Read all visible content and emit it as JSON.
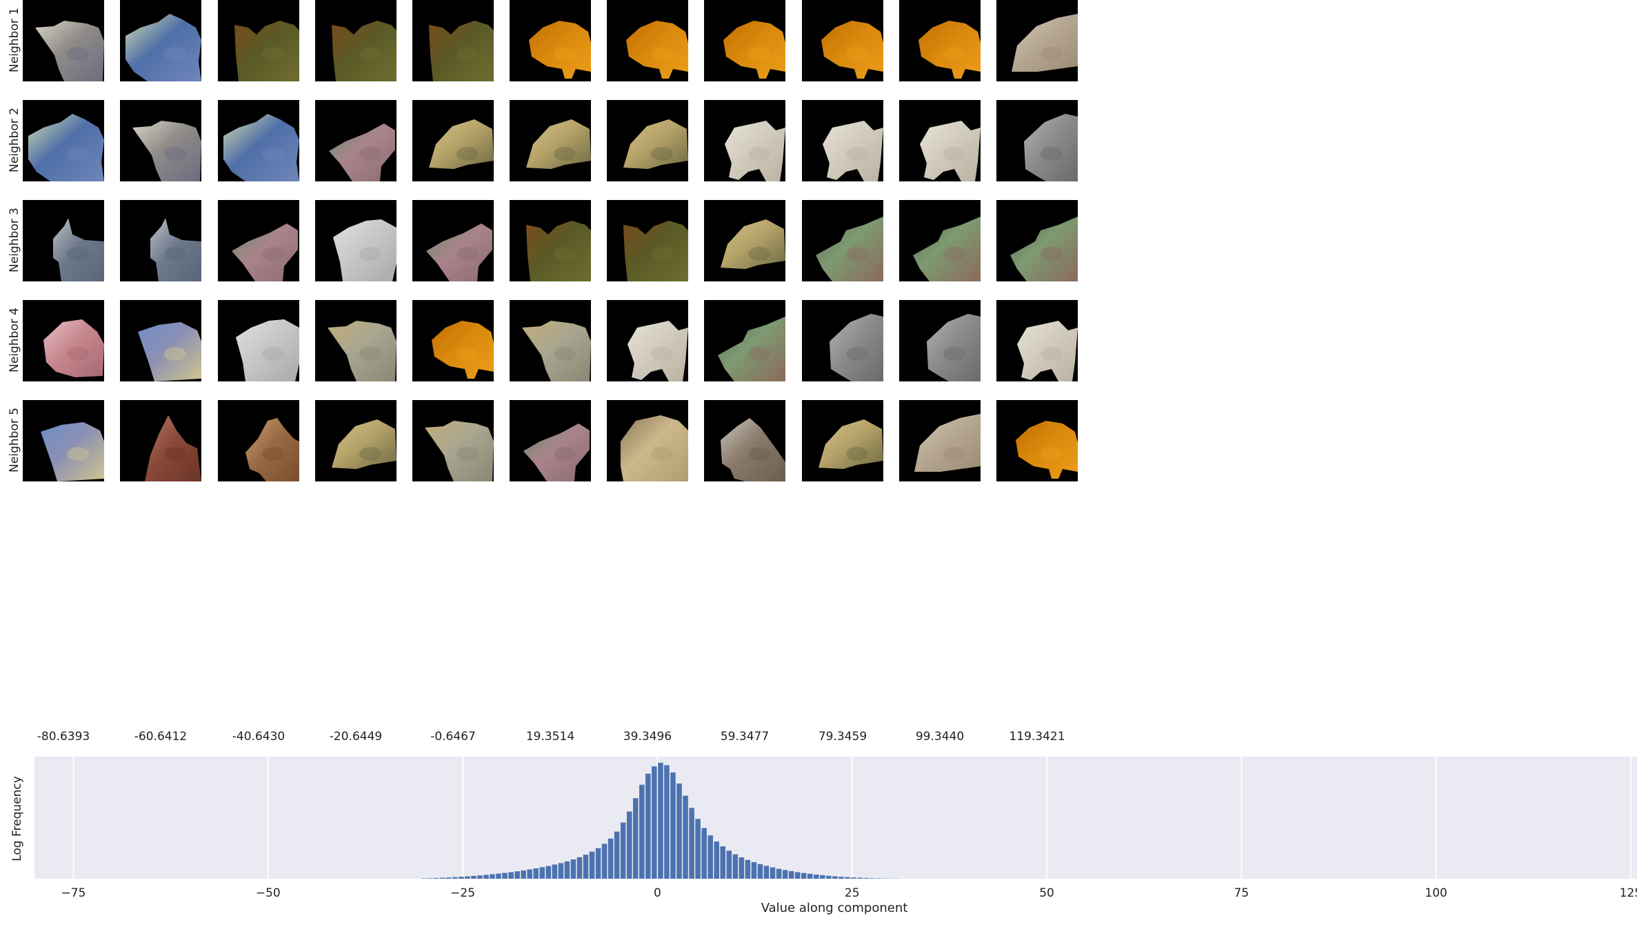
{
  "rows": [
    {
      "label": "Neighbor 1",
      "patches": [
        {
          "colors": [
            "#8f8b88",
            "#6b6d80",
            "#d9d4c6"
          ],
          "shape": "a"
        },
        {
          "colors": [
            "#4f6fa8",
            "#6f86b8",
            "#d6dfb0"
          ],
          "shape": "b"
        },
        {
          "colors": [
            "#5a5a26",
            "#6f6d30",
            "#7a4a1c"
          ],
          "shape": "c"
        },
        {
          "colors": [
            "#5a5a26",
            "#6f6d30",
            "#7a4a1c"
          ],
          "shape": "c"
        },
        {
          "colors": [
            "#5a5a26",
            "#6f6d30",
            "#7a4a1c"
          ],
          "shape": "c"
        },
        {
          "colors": [
            "#d9890c",
            "#ee9d1a",
            "#c46f04"
          ],
          "shape": "d"
        },
        {
          "colors": [
            "#d9890c",
            "#ee9d1a",
            "#c46f04"
          ],
          "shape": "d"
        },
        {
          "colors": [
            "#d9890c",
            "#ee9d1a",
            "#c46f04"
          ],
          "shape": "d"
        },
        {
          "colors": [
            "#d9890c",
            "#ee9d1a",
            "#c46f04"
          ],
          "shape": "d"
        },
        {
          "colors": [
            "#d9890c",
            "#ee9d1a",
            "#c46f04"
          ],
          "shape": "d"
        },
        {
          "colors": [
            "#b7a893",
            "#9b8b75",
            "#d8ccb6"
          ],
          "shape": "e"
        }
      ]
    },
    {
      "label": "Neighbor 2",
      "patches": [
        {
          "colors": [
            "#4f6fa8",
            "#6f86b8",
            "#d6dfb0"
          ],
          "shape": "b"
        },
        {
          "colors": [
            "#8f8b88",
            "#6b6d80",
            "#d9d4c6"
          ],
          "shape": "a"
        },
        {
          "colors": [
            "#4f6fa8",
            "#6f86b8",
            "#d6dfb0"
          ],
          "shape": "b"
        },
        {
          "colors": [
            "#a9848b",
            "#8c6b70",
            "#6a8a6a"
          ],
          "shape": "f"
        },
        {
          "colors": [
            "#b7a46a",
            "#6e6a44",
            "#d1bf84"
          ],
          "shape": "g"
        },
        {
          "colors": [
            "#b7a46a",
            "#6e6a44",
            "#d1bf84"
          ],
          "shape": "g"
        },
        {
          "colors": [
            "#b7a46a",
            "#6e6a44",
            "#d1bf84"
          ],
          "shape": "g"
        },
        {
          "colors": [
            "#d2ccbe",
            "#bab1a0",
            "#e6e2d6"
          ],
          "shape": "h"
        },
        {
          "colors": [
            "#d2ccbe",
            "#bab1a0",
            "#e6e2d6"
          ],
          "shape": "h"
        },
        {
          "colors": [
            "#d2ccbe",
            "#bab1a0",
            "#e6e2d6"
          ],
          "shape": "h"
        },
        {
          "colors": [
            "#8c8c8c",
            "#6a6a6a",
            "#b4b4b4"
          ],
          "shape": "i"
        }
      ]
    },
    {
      "label": "Neighbor 3",
      "patches": [
        {
          "colors": [
            "#6e7a8c",
            "#5a6478",
            "#c0c0c4"
          ],
          "shape": "j"
        },
        {
          "colors": [
            "#6e7a8c",
            "#5a6478",
            "#c0c0c4"
          ],
          "shape": "j"
        },
        {
          "colors": [
            "#a9848b",
            "#8c6b70",
            "#6a8a6a"
          ],
          "shape": "f"
        },
        {
          "colors": [
            "#c8c8c8",
            "#a9a9a9",
            "#e0e0e0"
          ],
          "shape": "k"
        },
        {
          "colors": [
            "#a9848b",
            "#8c6b70",
            "#6a8a6a"
          ],
          "shape": "f"
        },
        {
          "colors": [
            "#5a5a26",
            "#6f6d30",
            "#7a4a1c"
          ],
          "shape": "c"
        },
        {
          "colors": [
            "#5a5a26",
            "#6f6d30",
            "#7a4a1c"
          ],
          "shape": "c"
        },
        {
          "colors": [
            "#b7a46a",
            "#6e6a44",
            "#d1bf84"
          ],
          "shape": "g"
        },
        {
          "colors": [
            "#7d9a72",
            "#8a6a5a",
            "#5b6b58"
          ],
          "shape": "l"
        },
        {
          "colors": [
            "#7d9a72",
            "#8a6a5a",
            "#5b6b58"
          ],
          "shape": "l"
        },
        {
          "colors": [
            "#7d9a72",
            "#8a6a5a",
            "#5b6b58"
          ],
          "shape": "l"
        }
      ]
    },
    {
      "label": "Neighbor 4",
      "patches": [
        {
          "colors": [
            "#c7878f",
            "#a66a72",
            "#e7c1c4"
          ],
          "shape": "m"
        },
        {
          "colors": [
            "#8c90b4",
            "#d0c68e",
            "#6d8ec8"
          ],
          "shape": "n"
        },
        {
          "colors": [
            "#c8c8c8",
            "#a9a9a9",
            "#e0e0e0"
          ],
          "shape": "k"
        },
        {
          "colors": [
            "#a9a690",
            "#8a8774",
            "#c2ad7a"
          ],
          "shape": "o"
        },
        {
          "colors": [
            "#d9890c",
            "#ee9d1a",
            "#c46f04"
          ],
          "shape": "d"
        },
        {
          "colors": [
            "#a9a690",
            "#8a8774",
            "#c2ad7a"
          ],
          "shape": "o"
        },
        {
          "colors": [
            "#d2ccbe",
            "#bab1a0",
            "#e6e2d6"
          ],
          "shape": "h"
        },
        {
          "colors": [
            "#7d9a72",
            "#8a6a5a",
            "#5b6b58"
          ],
          "shape": "l"
        },
        {
          "colors": [
            "#8c8c8c",
            "#6a6a6a",
            "#b4b4b4"
          ],
          "shape": "i"
        },
        {
          "colors": [
            "#8c8c8c",
            "#6a6a6a",
            "#b4b4b4"
          ],
          "shape": "i"
        },
        {
          "colors": [
            "#d2ccbe",
            "#bab1a0",
            "#e6e2d6"
          ],
          "shape": "h"
        }
      ]
    },
    {
      "label": "Neighbor 5",
      "patches": [
        {
          "colors": [
            "#8c90b4",
            "#d0c68e",
            "#6d8ec8"
          ],
          "shape": "n"
        },
        {
          "colors": [
            "#8a4a3a",
            "#6a3426",
            "#b57a62"
          ],
          "shape": "p"
        },
        {
          "colors": [
            "#9a6a44",
            "#7a4e2e",
            "#c8a070"
          ],
          "shape": "q"
        },
        {
          "colors": [
            "#b7a46a",
            "#6e6a44",
            "#d1bf84"
          ],
          "shape": "g"
        },
        {
          "colors": [
            "#a9a690",
            "#8a8774",
            "#c2ad7a"
          ],
          "shape": "o"
        },
        {
          "colors": [
            "#a9848b",
            "#8c6b70",
            "#6a8a6a"
          ],
          "shape": "f"
        },
        {
          "colors": [
            "#cdb88c",
            "#b19c70",
            "#8a7a5a"
          ],
          "shape": "r"
        },
        {
          "colors": [
            "#8a7a6a",
            "#6a5e50",
            "#c8c4bc"
          ],
          "shape": "s"
        },
        {
          "colors": [
            "#b7a46a",
            "#6e6a44",
            "#d1bf84"
          ],
          "shape": "g"
        },
        {
          "colors": [
            "#b7a893",
            "#9b8b75",
            "#d8ccb6"
          ],
          "shape": "e"
        },
        {
          "colors": [
            "#d9890c",
            "#ee9d1a",
            "#c46f04"
          ],
          "shape": "d"
        }
      ]
    }
  ],
  "column_labels": [
    "-80.6393",
    "-60.6412",
    "-40.6430",
    "-20.6449",
    "-0.6467",
    "19.3514",
    "39.3496",
    "59.3477",
    "79.3459",
    "99.3440",
    "119.3421"
  ],
  "chart_data": {
    "type": "bar",
    "xlabel": "Value along component",
    "ylabel": "Log Frequency",
    "xlim": [
      -80,
      125
    ],
    "xticks": [
      -75,
      -50,
      -25,
      0,
      25,
      50,
      75,
      100,
      125
    ],
    "xtick_labels": [
      "−75",
      "−50",
      "−25",
      "0",
      "25",
      "50",
      "75",
      "100",
      "125"
    ],
    "grid": true,
    "bar_color": "#4c72b0",
    "background_color": "#eaeaf2",
    "x": [
      -30.0,
      -29.2,
      -28.4,
      -27.6,
      -26.8,
      -26.0,
      -25.2,
      -24.4,
      -23.6,
      -22.8,
      -22.0,
      -21.2,
      -20.4,
      -19.6,
      -18.8,
      -18.0,
      -17.2,
      -16.4,
      -15.6,
      -14.8,
      -14.0,
      -13.2,
      -12.4,
      -11.6,
      -10.8,
      -10.0,
      -9.2,
      -8.4,
      -7.6,
      -6.8,
      -6.0,
      -5.2,
      -4.4,
      -3.6,
      -2.8,
      -2.0,
      -1.2,
      -0.4,
      0.4,
      1.2,
      2.0,
      2.8,
      3.6,
      4.4,
      5.2,
      6.0,
      6.8,
      7.6,
      8.4,
      9.2,
      10.0,
      10.8,
      11.6,
      12.4,
      13.2,
      14.0,
      14.8,
      15.6,
      16.4,
      17.2,
      18.0,
      18.8,
      19.6,
      20.4,
      21.2,
      22.0,
      22.8,
      23.6,
      24.4,
      25.2,
      26.0,
      26.8,
      27.6,
      28.4,
      29.2,
      30.0,
      30.8
    ],
    "y": [
      0.3,
      0.4,
      0.6,
      0.8,
      1.0,
      1.3,
      1.6,
      1.9,
      2.3,
      2.7,
      3.2,
      3.7,
      4.2,
      4.8,
      5.4,
      6.1,
      6.8,
      7.6,
      8.5,
      9.4,
      10.4,
      11.6,
      12.8,
      14.2,
      15.8,
      17.6,
      19.7,
      22.2,
      25.0,
      28.6,
      32.9,
      38.6,
      46.0,
      55.0,
      66.0,
      77.0,
      86.0,
      92.0,
      95.0,
      93.0,
      87.0,
      78.0,
      68.0,
      58.0,
      49.0,
      41.5,
      35.5,
      30.5,
      26.5,
      23.0,
      20.0,
      17.5,
      15.4,
      13.6,
      12.0,
      10.6,
      9.3,
      8.1,
      7.1,
      6.2,
      5.4,
      4.7,
      4.0,
      3.4,
      2.9,
      2.4,
      2.0,
      1.6,
      1.3,
      1.0,
      0.8,
      0.6,
      0.4,
      0.3,
      0.2,
      0.15,
      0.1
    ]
  }
}
